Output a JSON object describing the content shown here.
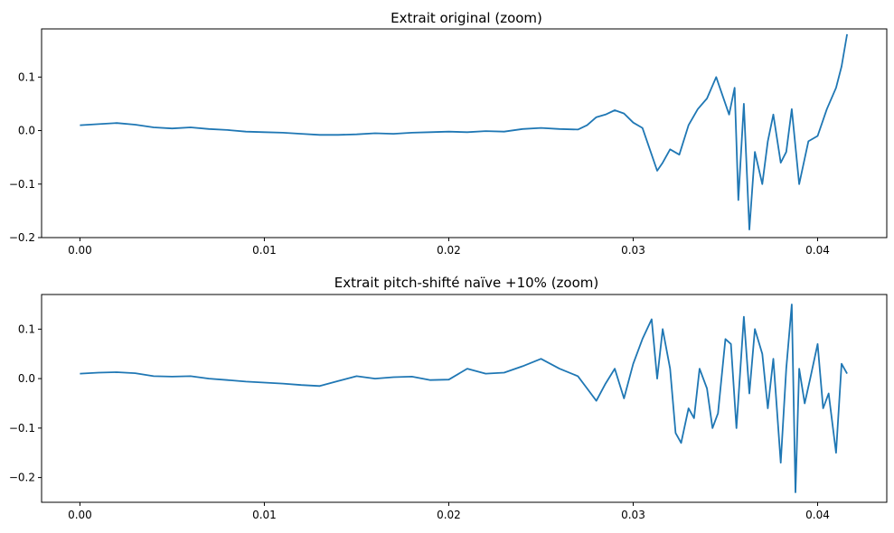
{
  "figure": {
    "background": "#ffffff",
    "line_color": "#1f77b4"
  },
  "chart_data": [
    {
      "type": "line",
      "title": "Extrait original (zoom)",
      "xlabel": "",
      "ylabel": "",
      "xlim": [
        -0.00208,
        0.04375
      ],
      "ylim": [
        -0.2,
        0.19
      ],
      "xticks": [
        "0.00",
        "0.01",
        "0.02",
        "0.03",
        "0.04"
      ],
      "xtick_values": [
        0.0,
        0.01,
        0.02,
        0.03,
        0.04
      ],
      "yticks": [
        "−0.2",
        "−0.1",
        "0.0",
        "0.1"
      ],
      "ytick_values": [
        -0.2,
        -0.1,
        0.0,
        0.1
      ],
      "grid": false,
      "legend": "none",
      "series": [
        {
          "color": "#1f77b4",
          "x": [
            0.0,
            0.001,
            0.002,
            0.003,
            0.004,
            0.005,
            0.006,
            0.007,
            0.008,
            0.009,
            0.01,
            0.011,
            0.012,
            0.013,
            0.014,
            0.015,
            0.016,
            0.017,
            0.018,
            0.019,
            0.02,
            0.021,
            0.022,
            0.023,
            0.024,
            0.025,
            0.026,
            0.027,
            0.0275,
            0.028,
            0.0285,
            0.029,
            0.0295,
            0.03,
            0.0305,
            0.031,
            0.0313,
            0.0316,
            0.032,
            0.0325,
            0.033,
            0.0335,
            0.034,
            0.0345,
            0.035,
            0.0352,
            0.0355,
            0.0357,
            0.036,
            0.0363,
            0.0366,
            0.037,
            0.0373,
            0.0376,
            0.038,
            0.0383,
            0.0386,
            0.039,
            0.0395,
            0.04,
            0.0405,
            0.041,
            0.0413,
            0.0416
          ],
          "y": [
            0.01,
            0.012,
            0.014,
            0.011,
            0.006,
            0.004,
            0.006,
            0.003,
            0.001,
            -0.002,
            -0.003,
            -0.004,
            -0.006,
            -0.008,
            -0.008,
            -0.007,
            -0.005,
            -0.006,
            -0.004,
            -0.003,
            -0.002,
            -0.003,
            -0.001,
            -0.002,
            0.003,
            0.005,
            0.003,
            0.002,
            0.01,
            0.025,
            0.03,
            0.038,
            0.032,
            0.015,
            0.005,
            -0.045,
            -0.075,
            -0.06,
            -0.035,
            -0.045,
            0.01,
            0.04,
            0.06,
            0.1,
            0.05,
            0.03,
            0.08,
            -0.13,
            0.05,
            -0.185,
            -0.04,
            -0.1,
            -0.02,
            0.03,
            -0.06,
            -0.04,
            0.04,
            -0.1,
            -0.02,
            -0.01,
            0.04,
            0.08,
            0.12,
            0.18
          ]
        }
      ]
    },
    {
      "type": "line",
      "title": "Extrait pitch-shifté naïve +10% (zoom)",
      "xlabel": "",
      "ylabel": "",
      "xlim": [
        -0.00208,
        0.04375
      ],
      "ylim": [
        -0.25,
        0.17
      ],
      "xticks": [
        "0.00",
        "0.01",
        "0.02",
        "0.03",
        "0.04"
      ],
      "xtick_values": [
        0.0,
        0.01,
        0.02,
        0.03,
        0.04
      ],
      "yticks": [
        "−0.2",
        "−0.1",
        "0.0",
        "0.1"
      ],
      "ytick_values": [
        -0.2,
        -0.1,
        0.0,
        0.1
      ],
      "grid": false,
      "legend": "none",
      "series": [
        {
          "color": "#1f77b4",
          "x": [
            0.0,
            0.001,
            0.002,
            0.003,
            0.004,
            0.005,
            0.006,
            0.007,
            0.008,
            0.009,
            0.01,
            0.011,
            0.012,
            0.013,
            0.014,
            0.015,
            0.016,
            0.017,
            0.018,
            0.019,
            0.02,
            0.021,
            0.022,
            0.023,
            0.024,
            0.025,
            0.026,
            0.027,
            0.0275,
            0.028,
            0.0285,
            0.029,
            0.0295,
            0.03,
            0.0305,
            0.031,
            0.0313,
            0.0316,
            0.032,
            0.0323,
            0.0326,
            0.033,
            0.0333,
            0.0336,
            0.034,
            0.0343,
            0.0346,
            0.035,
            0.0353,
            0.0356,
            0.036,
            0.0363,
            0.0366,
            0.037,
            0.0373,
            0.0376,
            0.038,
            0.0383,
            0.0386,
            0.0388,
            0.039,
            0.0393,
            0.0396,
            0.04,
            0.0403,
            0.0406,
            0.041,
            0.0413,
            0.0416
          ],
          "y": [
            0.01,
            0.012,
            0.013,
            0.011,
            0.005,
            0.004,
            0.005,
            0.0,
            -0.003,
            -0.006,
            -0.008,
            -0.01,
            -0.013,
            -0.015,
            -0.005,
            0.005,
            0.0,
            0.003,
            0.004,
            -0.003,
            -0.002,
            0.02,
            0.01,
            0.012,
            0.025,
            0.04,
            0.02,
            0.005,
            -0.02,
            -0.045,
            -0.01,
            0.02,
            -0.04,
            0.03,
            0.08,
            0.12,
            0.0,
            0.1,
            0.02,
            -0.11,
            -0.13,
            -0.06,
            -0.08,
            0.02,
            -0.02,
            -0.1,
            -0.07,
            0.08,
            0.07,
            -0.1,
            0.125,
            -0.03,
            0.1,
            0.05,
            -0.06,
            0.04,
            -0.17,
            0.02,
            0.15,
            -0.23,
            0.02,
            -0.05,
            0.0,
            0.07,
            -0.06,
            -0.03,
            -0.15,
            0.03,
            0.01
          ]
        }
      ]
    }
  ]
}
